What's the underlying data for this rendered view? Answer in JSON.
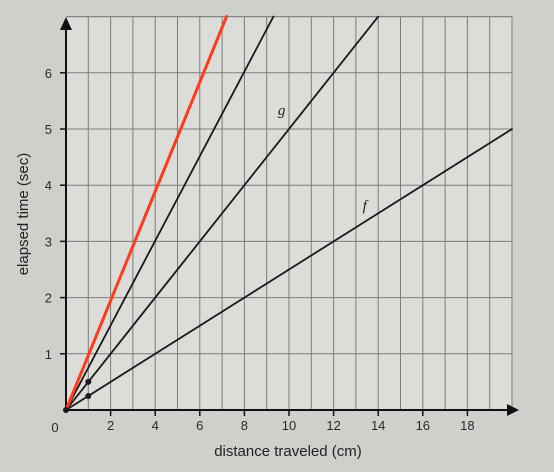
{
  "chart_data": {
    "type": "line",
    "xlabel": "distance traveled (cm)",
    "ylabel": "elapsed time (sec)",
    "origin_label": "0",
    "xlim": [
      0,
      20
    ],
    "ylim": [
      0,
      7
    ],
    "xticks": [
      2,
      4,
      6,
      8,
      10,
      12,
      14,
      16,
      18
    ],
    "yticks": [
      1,
      2,
      3,
      4,
      5,
      6
    ],
    "grid": true,
    "series": [
      {
        "name": "f",
        "color": "#1a1a1a",
        "x": [
          0,
          1,
          20
        ],
        "y": [
          0,
          0.25,
          5.0
        ]
      },
      {
        "name": "g",
        "color": "#1a1a1a",
        "x": [
          0,
          1,
          14.0
        ],
        "y": [
          0,
          0.5,
          7.0
        ]
      },
      {
        "name": "",
        "color": "#1a1a1a",
        "x": [
          0,
          9.3
        ],
        "y": [
          0,
          7.0
        ]
      },
      {
        "name": "",
        "color": "#ff3b1f",
        "x": [
          0,
          7.2
        ],
        "y": [
          0,
          7.0
        ]
      }
    ],
    "points": [
      {
        "x": 1,
        "y": 0.25
      },
      {
        "x": 1,
        "y": 0.5
      }
    ]
  }
}
